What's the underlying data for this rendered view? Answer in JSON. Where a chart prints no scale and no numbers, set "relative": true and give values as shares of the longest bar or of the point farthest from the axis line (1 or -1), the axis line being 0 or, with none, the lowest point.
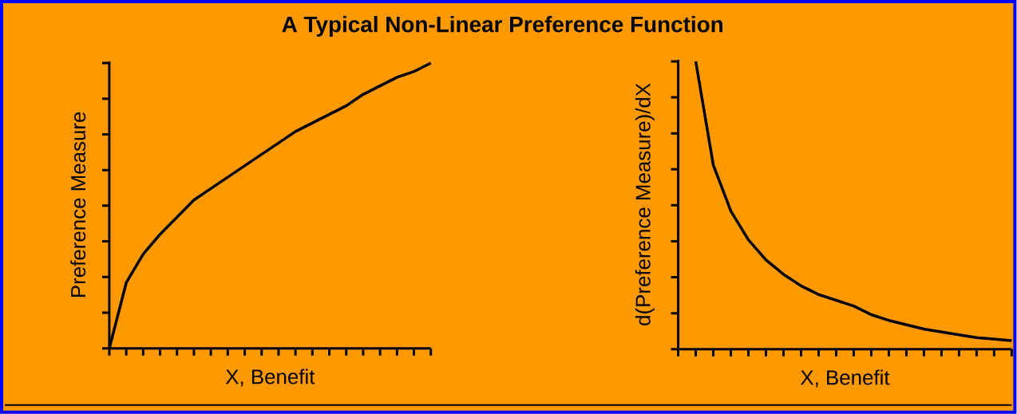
{
  "chart_data": [
    {
      "type": "line",
      "title": "A Typical Non-Linear Preference Function",
      "xlabel": "X, Benefit",
      "ylabel": "Preference Measure",
      "relative": true,
      "marker": "none",
      "line_style": "solid",
      "categories": [
        null,
        null,
        null,
        null,
        null,
        null,
        null,
        null,
        null,
        null,
        null,
        null,
        null,
        null,
        null,
        null,
        null,
        null,
        null,
        null
      ],
      "series": [
        {
          "color": "#000000",
          "values": [
            0,
            0.23,
            0.33,
            0.4,
            0.46,
            0.52,
            0.56,
            0.6,
            0.64,
            0.68,
            0.72,
            0.76,
            0.79,
            0.82,
            0.85,
            0.89,
            0.92,
            0.95,
            0.97,
            1
          ]
        }
      ]
    },
    {
      "type": "line",
      "xlabel": "X, Benefit",
      "ylabel": "d(Preference Measure)/dX",
      "relative": true,
      "marker": "none",
      "line_style": "solid",
      "categories": [
        null,
        null,
        null,
        null,
        null,
        null,
        null,
        null,
        null,
        null,
        null,
        null,
        null,
        null,
        null,
        null,
        null,
        null,
        null,
        null
      ],
      "series": [
        {
          "color": "#000000",
          "values": [
            null,
            1,
            0.64,
            0.48,
            0.38,
            0.31,
            0.26,
            0.22,
            0.19,
            0.17,
            0.15,
            0.12,
            0.1,
            0.085,
            0.07,
            0.06,
            0.05,
            0.04,
            0.035,
            0.03
          ]
        }
      ]
    }
  ]
}
